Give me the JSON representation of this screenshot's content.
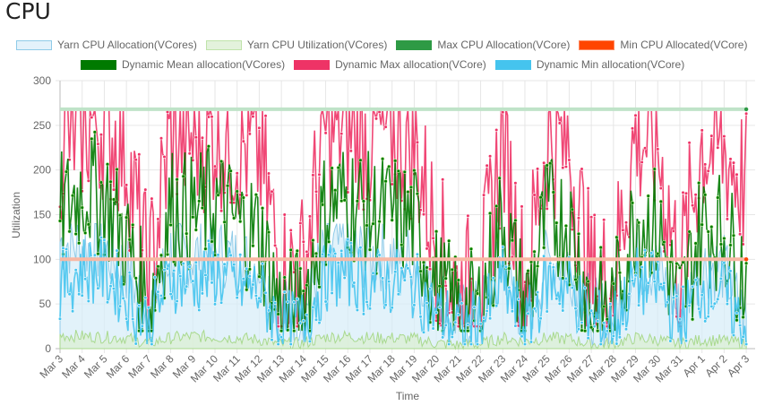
{
  "page": {
    "title": "CPU"
  },
  "chart_data": {
    "type": "line",
    "title": "CPU",
    "xlabel": "Time",
    "ylabel": "Utilization",
    "ylim": [
      0,
      300
    ],
    "yticks": [
      "0",
      "50",
      "100",
      "150",
      "200",
      "250",
      "300"
    ],
    "grid": true,
    "legend_position": "top",
    "categories": [
      "Mar 3",
      "Mar 4",
      "Mar 5",
      "Mar 6",
      "Mar 7",
      "Mar 8",
      "Mar 9",
      "Mar 10",
      "Mar 11",
      "Mar 12",
      "Mar 13",
      "Mar 14",
      "Mar 15",
      "Mar 16",
      "Mar 17",
      "Mar 18",
      "Mar 19",
      "Mar 20",
      "Mar 21",
      "Mar 22",
      "Mar 23",
      "Mar 24",
      "Mar 25",
      "Mar 26",
      "Mar 27",
      "Mar 28",
      "Mar 29",
      "Mar 30",
      "Mar 31",
      "Apr 1",
      "Apr 2",
      "Apr 3"
    ],
    "series": [
      {
        "name": "Yarn CPU Allocation(VCores)",
        "kind": "area",
        "color": "#d6ecf8",
        "border": "#8fcbe8",
        "values": [
          120,
          115,
          110,
          90,
          40,
          110,
          105,
          110,
          100,
          95,
          40,
          45,
          110,
          115,
          100,
          105,
          100,
          60,
          35,
          40,
          100,
          30,
          100,
          95,
          40,
          40,
          95,
          90,
          40,
          95,
          90,
          30
        ]
      },
      {
        "name": "Yarn CPU Utilization(VCores)",
        "kind": "area",
        "color": "#dcf0d0",
        "border": "#a9d98e",
        "values": [
          15,
          14,
          13,
          12,
          6,
          12,
          14,
          13,
          12,
          10,
          5,
          6,
          13,
          14,
          12,
          12,
          11,
          6,
          4,
          5,
          12,
          8,
          12,
          11,
          5,
          6,
          12,
          10,
          5,
          10,
          9,
          6
        ]
      },
      {
        "name": "Max CPU Allocation(VCore)",
        "kind": "line",
        "color": "#2e9a45",
        "values": [
          268,
          268,
          268,
          268,
          268,
          268,
          268,
          268,
          268,
          268,
          268,
          268,
          268,
          268,
          268,
          268,
          268,
          268,
          268,
          268,
          268,
          268,
          268,
          268,
          268,
          268,
          268,
          268,
          268,
          268,
          268,
          268
        ]
      },
      {
        "name": "Min CPU Allocated(VCore)",
        "kind": "line",
        "color": "#ff4500",
        "values": [
          100,
          100,
          100,
          100,
          100,
          100,
          100,
          100,
          100,
          100,
          100,
          100,
          100,
          100,
          100,
          100,
          100,
          100,
          100,
          100,
          100,
          100,
          100,
          100,
          100,
          100,
          100,
          100,
          100,
          100,
          100,
          100
        ]
      },
      {
        "name": "Dynamic Mean allocation(VCores)",
        "kind": "line",
        "color": "#007a00",
        "values": [
          150,
          180,
          170,
          120,
          40,
          160,
          150,
          165,
          140,
          130,
          40,
          50,
          160,
          170,
          150,
          150,
          140,
          70,
          40,
          45,
          150,
          40,
          150,
          140,
          45,
          45,
          150,
          135,
          45,
          140,
          130,
          80
        ]
      },
      {
        "name": "Dynamic Max allocation(VCore)",
        "kind": "line",
        "color": "#ee3366",
        "values": [
          230,
          250,
          255,
          220,
          70,
          240,
          235,
          245,
          230,
          220,
          80,
          90,
          245,
          250,
          235,
          240,
          230,
          120,
          60,
          70,
          235,
          60,
          235,
          225,
          70,
          80,
          240,
          225,
          80,
          230,
          220,
          180
        ]
      },
      {
        "name": "Dynamic Min allocation(VCore)",
        "kind": "line",
        "color": "#45c4ee",
        "values": [
          70,
          90,
          85,
          60,
          25,
          80,
          75,
          85,
          70,
          65,
          25,
          30,
          80,
          85,
          75,
          75,
          70,
          40,
          25,
          28,
          75,
          20,
          75,
          70,
          28,
          28,
          75,
          70,
          28,
          70,
          65,
          15
        ]
      }
    ]
  }
}
